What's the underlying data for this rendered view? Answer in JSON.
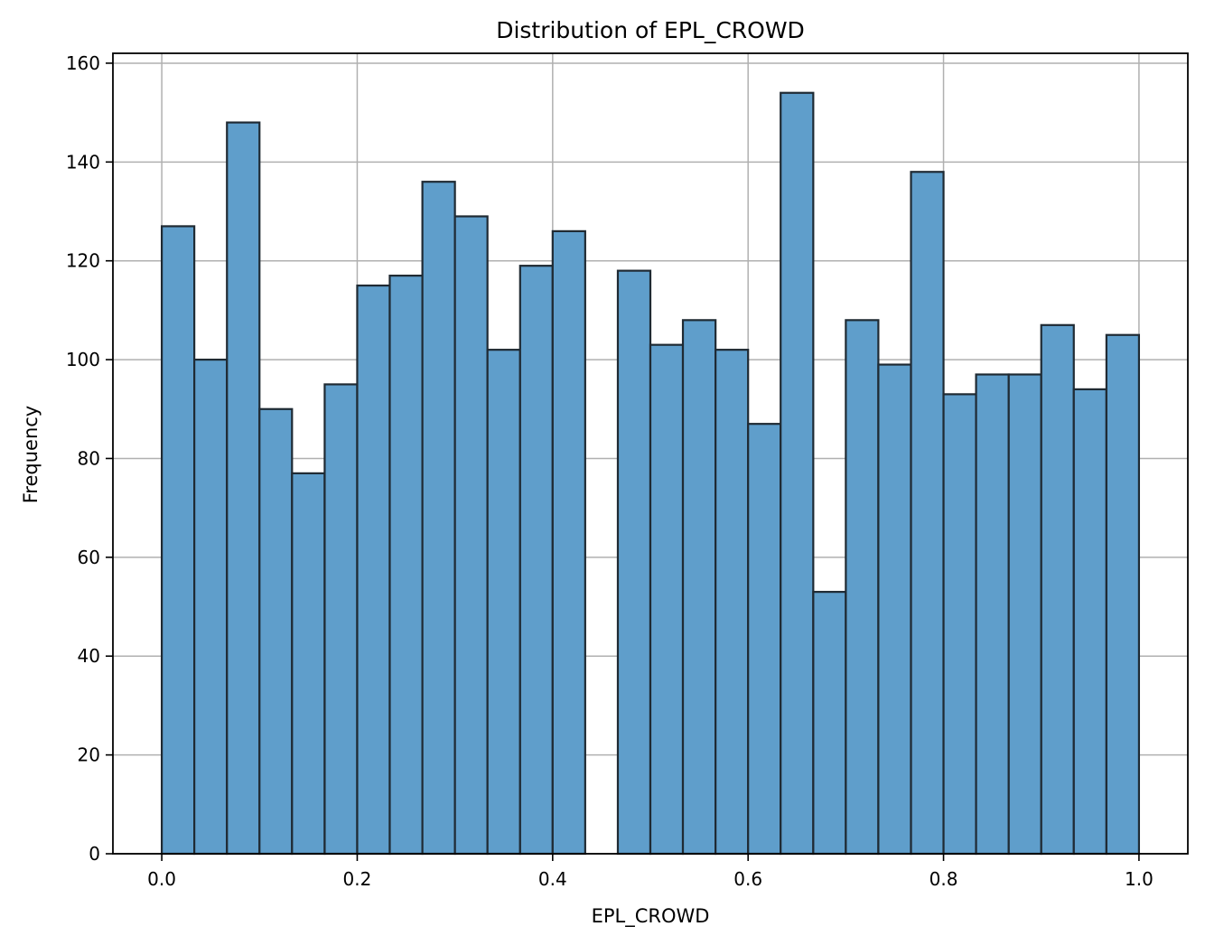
{
  "chart_data": {
    "type": "bar",
    "title": "Distribution of EPL_CROWD",
    "xlabel": "EPL_CROWD",
    "ylabel": "Frequency",
    "xlim": [
      -0.05,
      1.05
    ],
    "ylim": [
      0,
      162
    ],
    "xticks": [
      0.0,
      0.2,
      0.4,
      0.6,
      0.8,
      1.0
    ],
    "xtick_labels": [
      "0.0",
      "0.2",
      "0.4",
      "0.6",
      "0.8",
      "1.0"
    ],
    "yticks": [
      0,
      20,
      40,
      60,
      80,
      100,
      120,
      140,
      160
    ],
    "ytick_labels": [
      "0",
      "20",
      "40",
      "60",
      "80",
      "100",
      "120",
      "140",
      "160"
    ],
    "grid": true,
    "bin_edges": [
      0.0,
      0.0333,
      0.0667,
      0.1,
      0.1333,
      0.1667,
      0.2,
      0.2333,
      0.2667,
      0.3,
      0.3333,
      0.3667,
      0.4,
      0.4333,
      0.4667,
      0.5,
      0.5333,
      0.5667,
      0.6,
      0.6333,
      0.6667,
      0.7,
      0.7333,
      0.7667,
      0.8,
      0.8333,
      0.8667,
      0.9,
      0.9333,
      0.9667,
      1.0
    ],
    "values": [
      127,
      100,
      148,
      90,
      77,
      95,
      115,
      117,
      136,
      129,
      102,
      119,
      126,
      0,
      118,
      103,
      108,
      102,
      87,
      154,
      53,
      108,
      99,
      138,
      93,
      97,
      97,
      107,
      94,
      105
    ],
    "bar_color": "#5f9ecb",
    "edge_color": "#1f2a33",
    "grid_color": "#b0b0b0"
  }
}
